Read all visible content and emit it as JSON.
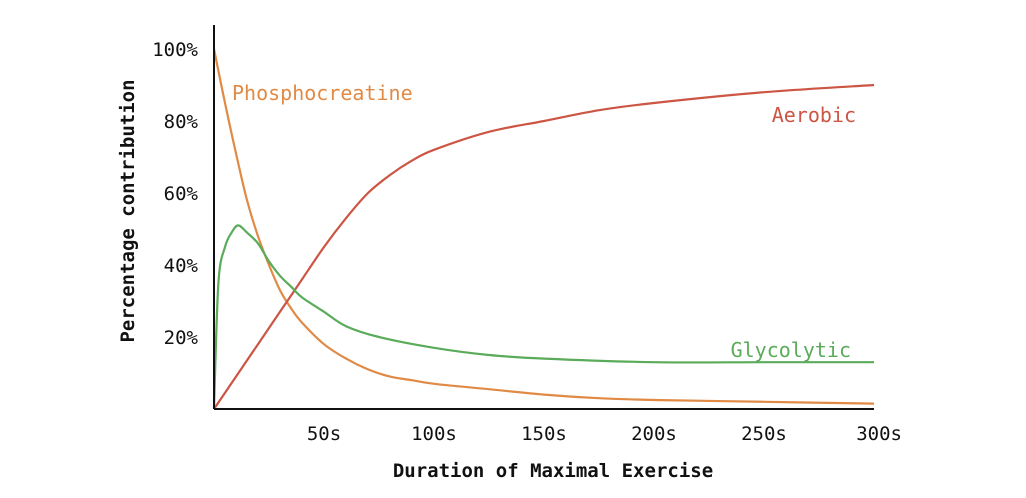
{
  "chart_data": {
    "type": "line",
    "title": "",
    "xlabel": "Duration of Maximal Exercise",
    "ylabel": "Percentage contribution",
    "xlim": [
      0,
      300
    ],
    "ylim": [
      0,
      100
    ],
    "x_ticks": [
      50,
      100,
      150,
      200,
      250,
      300
    ],
    "x_tick_labels": [
      "50s",
      "100s",
      "150s",
      "200s",
      "250s",
      "300s"
    ],
    "y_ticks": [
      20,
      40,
      60,
      80,
      100
    ],
    "y_tick_labels": [
      "20%",
      "40%",
      "60%",
      "80%",
      "100%"
    ],
    "grid": false,
    "legend": "inline labels",
    "series": [
      {
        "name": "Phosphocreatine",
        "color": "#e08a45",
        "x": [
          0,
          5,
          10,
          15,
          20,
          25,
          30,
          35,
          40,
          50,
          60,
          70,
          80,
          90,
          100,
          125,
          150,
          175,
          200,
          250,
          300
        ],
        "values": [
          100,
          85,
          71,
          58,
          48,
          40,
          33,
          28,
          24,
          18,
          14,
          11,
          9,
          8,
          7,
          5.5,
          4,
          3,
          2.5,
          2,
          1.5
        ]
      },
      {
        "name": "Aerobic",
        "color": "#cc5544",
        "x": [
          0,
          10,
          20,
          30,
          40,
          50,
          60,
          70,
          80,
          90,
          100,
          125,
          150,
          175,
          200,
          250,
          300
        ],
        "values": [
          0,
          9,
          18,
          27,
          36,
          45,
          53,
          60,
          65,
          69,
          72,
          77,
          80,
          83,
          85,
          88,
          90
        ]
      },
      {
        "name": "Glycolytic",
        "color": "#5aab5a",
        "x": [
          0,
          2,
          5,
          8,
          11,
          15,
          20,
          25,
          30,
          35,
          40,
          50,
          60,
          75,
          100,
          125,
          150,
          200,
          250,
          300
        ],
        "values": [
          0,
          35,
          45,
          49,
          51,
          49,
          46,
          41,
          37,
          34,
          31,
          27,
          23,
          20,
          17,
          15,
          14,
          13,
          13,
          13
        ]
      }
    ]
  }
}
